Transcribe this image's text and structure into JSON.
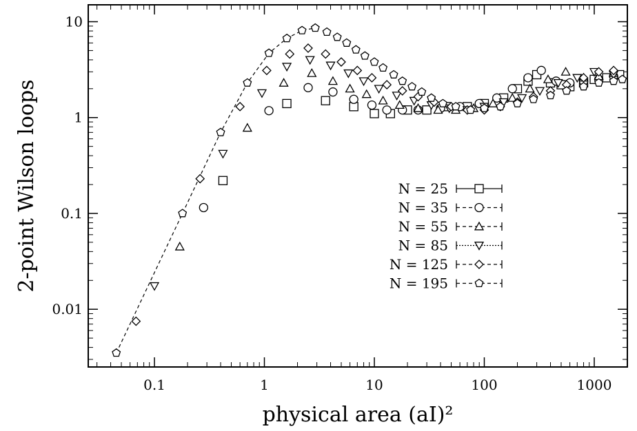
{
  "chart_data": {
    "type": "scatter",
    "xlabel": "physical area (aI)²",
    "ylabel": "2-point Wilson loops",
    "x_scale": "log",
    "y_scale": "log",
    "xlim": [
      0.025,
      2000
    ],
    "ylim": [
      0.0025,
      15
    ],
    "x_ticks": [
      {
        "value": 0.1,
        "label": "0.1"
      },
      {
        "value": 1,
        "label": "1"
      },
      {
        "value": 10,
        "label": "10"
      },
      {
        "value": 100,
        "label": "100"
      },
      {
        "value": 1000,
        "label": "1000"
      }
    ],
    "y_ticks": [
      {
        "value": 0.01,
        "label": "0.01"
      },
      {
        "value": 0.1,
        "label": "0.1"
      },
      {
        "value": 1,
        "label": "1"
      },
      {
        "value": 10,
        "label": "10"
      }
    ],
    "grid": false,
    "legend_position": "center-right",
    "series": [
      {
        "name": "N = 25",
        "marker": "square",
        "line_style": "solid",
        "x": [
          0.42,
          1.6,
          3.6,
          6.5,
          10,
          14,
          20,
          30,
          45,
          70,
          100,
          150,
          200,
          250,
          300,
          400,
          500,
          600,
          800,
          1000,
          1300,
          1700
        ],
        "y": [
          0.22,
          1.4,
          1.5,
          1.3,
          1.1,
          1.1,
          1.2,
          1.2,
          1.3,
          1.3,
          1.4,
          1.6,
          2.0,
          2.4,
          2.8,
          2.3,
          2.2,
          2.1,
          2.3,
          2.5,
          2.6,
          2.8
        ]
      },
      {
        "name": "N = 35",
        "marker": "circle",
        "line_style": "dash",
        "x": [
          0.28,
          1.1,
          2.5,
          4.2,
          6.5,
          9.5,
          13,
          18,
          25,
          40,
          60,
          90,
          130,
          180,
          250,
          330,
          450,
          600,
          800,
          1100,
          1500
        ],
        "y": [
          0.115,
          1.18,
          2.05,
          1.85,
          1.55,
          1.35,
          1.2,
          1.2,
          1.2,
          1.25,
          1.3,
          1.4,
          1.6,
          2.0,
          2.6,
          3.1,
          2.4,
          2.3,
          2.4,
          2.5,
          2.7
        ]
      },
      {
        "name": "N = 55",
        "marker": "triangle-up",
        "line_style": "dash",
        "x": [
          0.17,
          0.7,
          1.5,
          2.7,
          4.2,
          6,
          8.5,
          12,
          17,
          25,
          38,
          55,
          80,
          120,
          180,
          260,
          380,
          550,
          800,
          1100,
          1500
        ],
        "y": [
          0.045,
          0.78,
          2.3,
          2.9,
          2.4,
          2.0,
          1.75,
          1.5,
          1.35,
          1.25,
          1.2,
          1.2,
          1.25,
          1.4,
          1.6,
          2.0,
          2.5,
          3.0,
          2.6,
          2.7,
          2.9
        ]
      },
      {
        "name": "N = 85",
        "marker": "triangle-down",
        "line_style": "dot",
        "x": [
          0.1,
          0.42,
          0.95,
          1.6,
          2.6,
          4,
          5.8,
          8,
          11,
          16,
          23,
          33,
          48,
          70,
          100,
          150,
          220,
          320,
          470,
          700,
          1000,
          1500
        ],
        "y": [
          0.0175,
          0.42,
          1.8,
          3.4,
          4.0,
          3.5,
          2.9,
          2.4,
          2.0,
          1.7,
          1.5,
          1.35,
          1.25,
          1.2,
          1.3,
          1.45,
          1.6,
          1.9,
          2.3,
          2.6,
          3.0,
          2.8
        ]
      },
      {
        "name": "N = 125",
        "marker": "diamond",
        "line_style": "dash",
        "x": [
          0.068,
          0.26,
          0.6,
          1.05,
          1.7,
          2.5,
          3.6,
          5,
          7,
          9.5,
          13,
          18,
          25,
          35,
          50,
          70,
          100,
          140,
          200,
          280,
          400,
          560,
          800,
          1100,
          1500
        ],
        "y": [
          0.0075,
          0.23,
          1.3,
          3.1,
          4.6,
          5.3,
          4.6,
          3.8,
          3.1,
          2.6,
          2.2,
          1.9,
          1.65,
          1.45,
          1.3,
          1.2,
          1.2,
          1.3,
          1.45,
          1.65,
          1.9,
          2.2,
          2.6,
          3.0,
          3.1
        ]
      },
      {
        "name": "N = 195",
        "marker": "pentagon",
        "line_style": "dash",
        "x": [
          0.045,
          0.18,
          0.4,
          0.7,
          1.1,
          1.6,
          2.2,
          2.9,
          3.7,
          4.6,
          5.6,
          6.8,
          8.2,
          10,
          12,
          15,
          18,
          22,
          27,
          33,
          42,
          55,
          75,
          100,
          140,
          200,
          280,
          400,
          560,
          800,
          1100,
          1500,
          1800
        ],
        "y": [
          0.0035,
          0.1,
          0.7,
          2.3,
          4.7,
          6.7,
          8.1,
          8.6,
          7.8,
          6.9,
          6.0,
          5.1,
          4.4,
          3.8,
          3.3,
          2.8,
          2.4,
          2.1,
          1.85,
          1.6,
          1.4,
          1.3,
          1.2,
          1.25,
          1.3,
          1.4,
          1.55,
          1.7,
          1.9,
          2.1,
          2.3,
          2.4,
          2.5
        ]
      }
    ]
  }
}
